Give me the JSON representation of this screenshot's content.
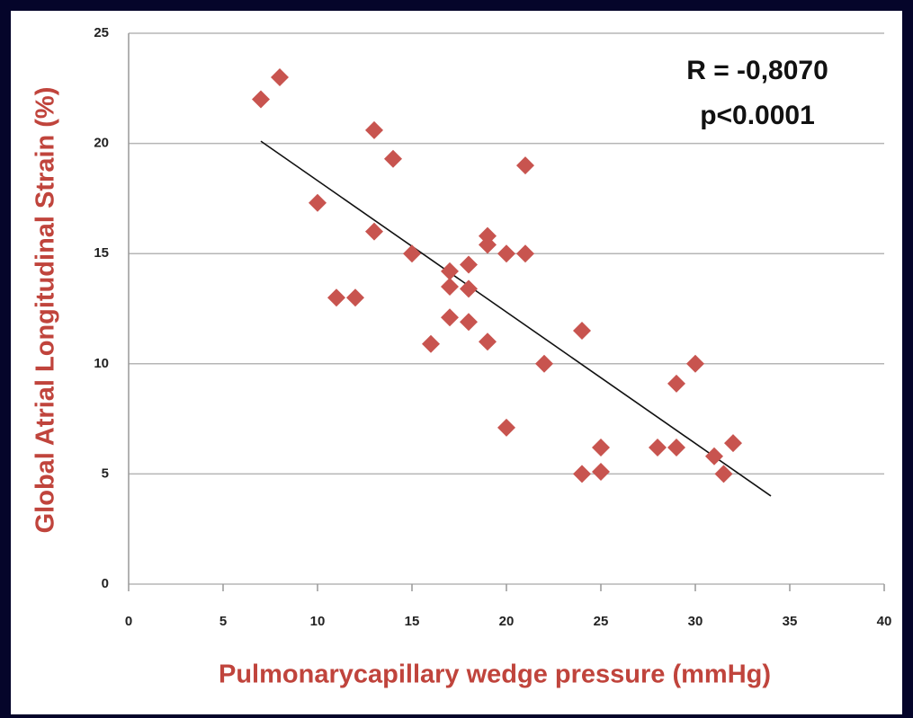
{
  "chart_data": {
    "type": "scatter",
    "x_label": "Pulmonarycapillary wedge pressure (mmHg)",
    "y_label": "Global Atrial Longitudinal Strain (%)",
    "annotations": [
      "R = -0,8070",
      "p<0.0001"
    ],
    "color": "#c8544f",
    "x": [
      7,
      8,
      13,
      14,
      10,
      13,
      21,
      15,
      19,
      19,
      20,
      21,
      17,
      18,
      17,
      18,
      11,
      12,
      17,
      18,
      16,
      19,
      24,
      22,
      20,
      24,
      25,
      25,
      28,
      29,
      29,
      30,
      31,
      31.5,
      32
    ],
    "values": [
      22,
      23,
      20.6,
      19.3,
      17.3,
      16,
      19,
      15,
      15.8,
      15.4,
      15,
      15,
      14.2,
      14.5,
      13.5,
      13.4,
      13,
      13,
      12.1,
      11.9,
      10.9,
      11,
      11.5,
      10,
      7.1,
      5,
      5.1,
      6.2,
      6.2,
      6.2,
      9.1,
      10,
      5.8,
      5,
      6.4
    ],
    "trendline": {
      "x": [
        7,
        34
      ],
      "values": [
        20.1,
        4
      ]
    },
    "xlim": [
      0,
      40
    ],
    "xticks": [
      0,
      5,
      10,
      15,
      20,
      25,
      30,
      35,
      40
    ],
    "ylim": [
      0,
      25
    ],
    "yticks": [
      0,
      5,
      10,
      15,
      20,
      25
    ],
    "grid": true
  }
}
